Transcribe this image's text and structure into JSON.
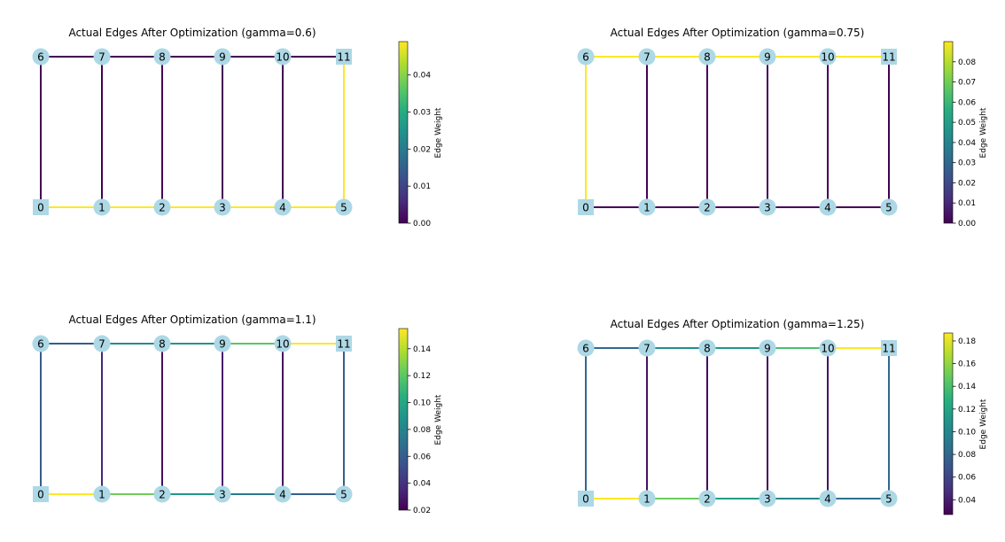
{
  "colormap": "viridis",
  "node_color": "#add8e6",
  "panels": [
    {
      "title": "Actual Edges After Optimization (gamma=0.6)",
      "colorbar": {
        "label": "Edge Weight",
        "range": [
          0.0,
          0.049
        ],
        "ticks": [
          "0.00",
          "0.01",
          "0.02",
          "0.03",
          "0.04"
        ]
      },
      "edges": [
        {
          "from": 6,
          "to": 7,
          "weight": 0.0
        },
        {
          "from": 7,
          "to": 8,
          "weight": 0.0
        },
        {
          "from": 8,
          "to": 9,
          "weight": 0.0
        },
        {
          "from": 9,
          "to": 10,
          "weight": 0.0
        },
        {
          "from": 10,
          "to": 11,
          "weight": 0.0
        },
        {
          "from": 0,
          "to": 1,
          "weight": 0.049
        },
        {
          "from": 1,
          "to": 2,
          "weight": 0.049
        },
        {
          "from": 2,
          "to": 3,
          "weight": 0.049
        },
        {
          "from": 3,
          "to": 4,
          "weight": 0.049
        },
        {
          "from": 4,
          "to": 5,
          "weight": 0.049
        },
        {
          "from": 0,
          "to": 6,
          "weight": 0.0
        },
        {
          "from": 1,
          "to": 7,
          "weight": 0.0
        },
        {
          "from": 2,
          "to": 8,
          "weight": 0.0
        },
        {
          "from": 3,
          "to": 9,
          "weight": 0.0
        },
        {
          "from": 4,
          "to": 10,
          "weight": 0.0
        },
        {
          "from": 5,
          "to": 11,
          "weight": 0.049
        }
      ]
    },
    {
      "title": "Actual Edges After Optimization (gamma=0.75)",
      "colorbar": {
        "label": "Edge Weight",
        "range": [
          0.0,
          0.09
        ],
        "ticks": [
          "0.00",
          "0.01",
          "0.02",
          "0.03",
          "0.04",
          "0.05",
          "0.06",
          "0.07",
          "0.08"
        ]
      },
      "edges": [
        {
          "from": 6,
          "to": 7,
          "weight": 0.09
        },
        {
          "from": 7,
          "to": 8,
          "weight": 0.09
        },
        {
          "from": 8,
          "to": 9,
          "weight": 0.09
        },
        {
          "from": 9,
          "to": 10,
          "weight": 0.09
        },
        {
          "from": 10,
          "to": 11,
          "weight": 0.09
        },
        {
          "from": 0,
          "to": 1,
          "weight": 0.0
        },
        {
          "from": 1,
          "to": 2,
          "weight": 0.0
        },
        {
          "from": 2,
          "to": 3,
          "weight": 0.0
        },
        {
          "from": 3,
          "to": 4,
          "weight": 0.0
        },
        {
          "from": 4,
          "to": 5,
          "weight": 0.0
        },
        {
          "from": 0,
          "to": 6,
          "weight": 0.09
        },
        {
          "from": 1,
          "to": 7,
          "weight": 0.0
        },
        {
          "from": 2,
          "to": 8,
          "weight": 0.0
        },
        {
          "from": 3,
          "to": 9,
          "weight": 0.0
        },
        {
          "from": 4,
          "to": 10,
          "weight": 0.0
        },
        {
          "from": 5,
          "to": 11,
          "weight": 0.0
        }
      ]
    },
    {
      "title": "Actual Edges After Optimization (gamma=1.1)",
      "colorbar": {
        "label": "Edge Weight",
        "range": [
          0.02,
          0.155
        ],
        "ticks": [
          "0.02",
          "0.04",
          "0.06",
          "0.08",
          "0.10",
          "0.12",
          "0.14"
        ]
      },
      "edges": [
        {
          "from": 6,
          "to": 7,
          "weight": 0.06
        },
        {
          "from": 7,
          "to": 8,
          "weight": 0.085
        },
        {
          "from": 8,
          "to": 9,
          "weight": 0.09
        },
        {
          "from": 9,
          "to": 10,
          "weight": 0.12
        },
        {
          "from": 10,
          "to": 11,
          "weight": 0.155
        },
        {
          "from": 0,
          "to": 1,
          "weight": 0.155
        },
        {
          "from": 1,
          "to": 2,
          "weight": 0.125
        },
        {
          "from": 2,
          "to": 3,
          "weight": 0.09
        },
        {
          "from": 3,
          "to": 4,
          "weight": 0.075
        },
        {
          "from": 4,
          "to": 5,
          "weight": 0.06
        },
        {
          "from": 0,
          "to": 6,
          "weight": 0.06
        },
        {
          "from": 1,
          "to": 7,
          "weight": 0.035
        },
        {
          "from": 2,
          "to": 8,
          "weight": 0.025
        },
        {
          "from": 3,
          "to": 9,
          "weight": 0.03
        },
        {
          "from": 4,
          "to": 10,
          "weight": 0.025
        },
        {
          "from": 5,
          "to": 11,
          "weight": 0.06
        }
      ]
    },
    {
      "title": "Actual Edges After Optimization (gamma=1.25)",
      "colorbar": {
        "label": "Edge Weight",
        "range": [
          0.027,
          0.187
        ],
        "ticks": [
          "0.04",
          "0.06",
          "0.08",
          "0.10",
          "0.12",
          "0.14",
          "0.16",
          "0.18"
        ]
      },
      "edges": [
        {
          "from": 6,
          "to": 7,
          "weight": 0.08
        },
        {
          "from": 7,
          "to": 8,
          "weight": 0.105
        },
        {
          "from": 8,
          "to": 9,
          "weight": 0.11
        },
        {
          "from": 9,
          "to": 10,
          "weight": 0.14
        },
        {
          "from": 10,
          "to": 11,
          "weight": 0.187
        },
        {
          "from": 0,
          "to": 1,
          "weight": 0.187
        },
        {
          "from": 1,
          "to": 2,
          "weight": 0.15
        },
        {
          "from": 2,
          "to": 3,
          "weight": 0.115
        },
        {
          "from": 3,
          "to": 4,
          "weight": 0.1
        },
        {
          "from": 4,
          "to": 5,
          "weight": 0.085
        },
        {
          "from": 0,
          "to": 6,
          "weight": 0.08
        },
        {
          "from": 1,
          "to": 7,
          "weight": 0.035
        },
        {
          "from": 2,
          "to": 8,
          "weight": 0.03
        },
        {
          "from": 3,
          "to": 9,
          "weight": 0.03
        },
        {
          "from": 4,
          "to": 10,
          "weight": 0.035
        },
        {
          "from": 5,
          "to": 11,
          "weight": 0.08
        }
      ]
    }
  ]
}
